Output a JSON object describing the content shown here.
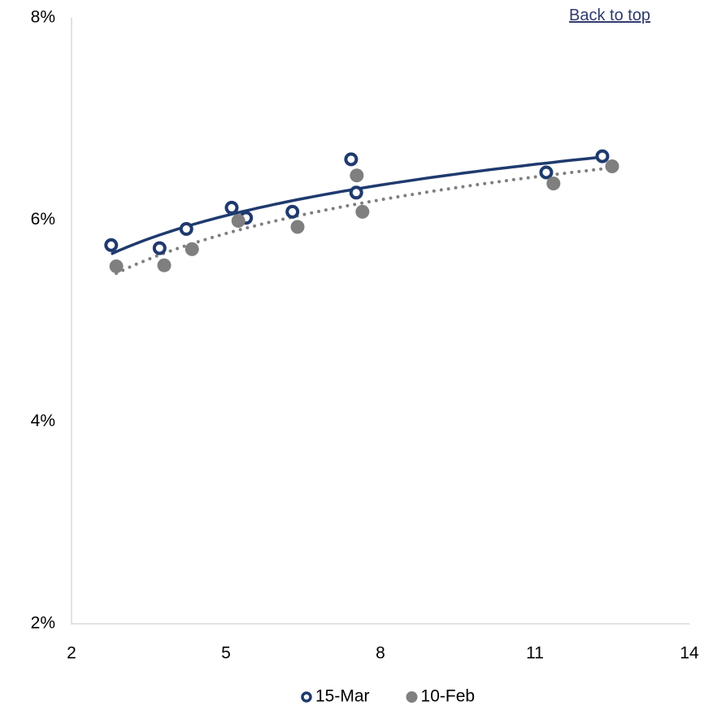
{
  "link": "Back to top",
  "chart_data": {
    "type": "scatter",
    "xlim": [
      2,
      14
    ],
    "xticks": [
      2,
      5,
      8,
      11,
      14
    ],
    "ylim": [
      2,
      8
    ],
    "yticks": [
      {
        "value": 2,
        "label": "2%"
      },
      {
        "value": 4,
        "label": "4%"
      },
      {
        "value": 6,
        "label": "6%"
      },
      {
        "value": 8,
        "label": "8%"
      }
    ],
    "grid": false,
    "legend": "bottom",
    "series": [
      {
        "name": "15-Mar",
        "color": "#1f3a6e",
        "marker": "ring",
        "trendline": "logarithmic",
        "line_style": "solid",
        "x": [
          2.77,
          3.71,
          4.23,
          5.11,
          5.39,
          6.29,
          7.43,
          7.53,
          11.22,
          12.31
        ],
        "values": [
          5.75,
          5.72,
          5.91,
          6.12,
          6.02,
          6.08,
          6.6,
          6.27,
          6.47,
          6.63
        ]
      },
      {
        "name": "10-Feb",
        "color": "#7f7f7f",
        "marker": "dot",
        "trendline": "logarithmic",
        "line_style": "dotted",
        "x": [
          2.87,
          3.8,
          4.34,
          5.24,
          6.39,
          7.54,
          7.65,
          11.36,
          12.5
        ],
        "values": [
          5.54,
          5.55,
          5.71,
          5.99,
          5.93,
          6.44,
          6.08,
          6.36,
          6.53
        ]
      }
    ]
  }
}
